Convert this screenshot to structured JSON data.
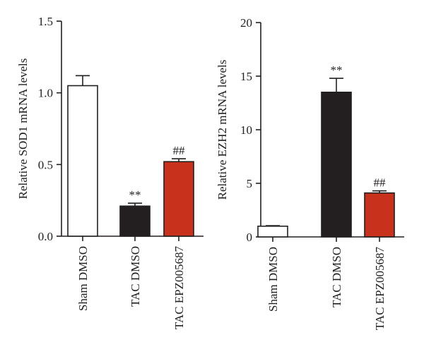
{
  "chart_data": [
    {
      "type": "bar",
      "ylabel": "Relative SOD1 mRNA levels",
      "ylim": [
        0,
        1.5
      ],
      "yticks": [
        "0.0",
        "0.5",
        "1.0",
        "1.5"
      ],
      "ytick_values": [
        0,
        0.5,
        1.0,
        1.5
      ],
      "categories": [
        "Sham DMSO",
        "TAC DMSO",
        "TAC EPZ005687"
      ],
      "values": [
        1.05,
        0.21,
        0.52
      ],
      "errors": [
        0.07,
        0.02,
        0.02
      ],
      "annotations": [
        "",
        "**",
        "##"
      ],
      "colors": [
        "#ffffff",
        "#231f20",
        "#c8311b"
      ],
      "grid": false
    },
    {
      "type": "bar",
      "ylabel": "Relative EZH2 mRNA levels",
      "ylim": [
        0,
        20
      ],
      "yticks": [
        "0",
        "5",
        "10",
        "15",
        "20"
      ],
      "ytick_values": [
        0,
        5,
        10,
        15,
        20
      ],
      "categories": [
        "Sham DMSO",
        "TAC DMSO",
        "TAC EPZ005687"
      ],
      "values": [
        1.0,
        13.5,
        4.1
      ],
      "errors": [
        0.05,
        1.3,
        0.2
      ],
      "annotations": [
        "",
        "**",
        "##"
      ],
      "colors": [
        "#ffffff",
        "#231f20",
        "#c8311b"
      ],
      "grid": false
    }
  ]
}
